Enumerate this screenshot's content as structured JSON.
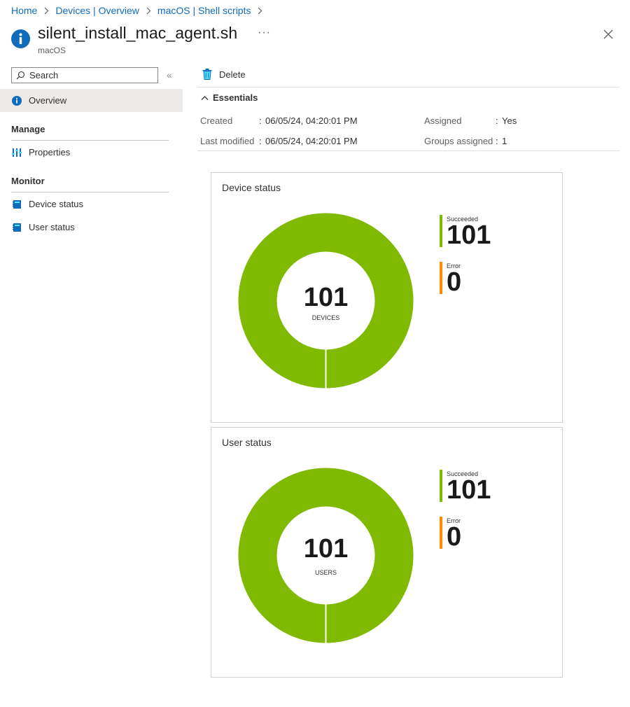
{
  "breadcrumb": [
    {
      "label": "Home"
    },
    {
      "label": "Devices | Overview"
    },
    {
      "label": "macOS | Shell scripts"
    }
  ],
  "header": {
    "title": "silent_install_mac_agent.sh",
    "subtitle": "macOS",
    "more_label": "···"
  },
  "sidebar": {
    "search_placeholder": "Search",
    "collapse_label": "«",
    "overview_label": "Overview",
    "manage_heading": "Manage",
    "properties_label": "Properties",
    "monitor_heading": "Monitor",
    "device_status_label": "Device status",
    "user_status_label": "User status"
  },
  "toolbar": {
    "delete_label": "Delete"
  },
  "essentials": {
    "heading": "Essentials",
    "created_label": "Created",
    "created_value": "06/05/24, 04:20:01 PM",
    "last_modified_label": "Last modified",
    "last_modified_value": "06/05/24, 04:20:01 PM",
    "assigned_label": "Assigned",
    "assigned_value": "Yes",
    "groups_assigned_label": "Groups assigned",
    "groups_assigned_value": "1"
  },
  "colors": {
    "succeeded": "#7fba00",
    "error": "#ff8c00",
    "link": "#0f6cbd"
  },
  "chart_data": [
    {
      "type": "pie",
      "title": "Device status",
      "center_value": "101",
      "center_label": "DEVICES",
      "categories": [
        "Succeeded",
        "Error"
      ],
      "values": [
        101,
        0
      ],
      "legend": [
        {
          "label": "Succeeded",
          "value": "101"
        },
        {
          "label": "Error",
          "value": "0"
        }
      ]
    },
    {
      "type": "pie",
      "title": "User status",
      "center_value": "101",
      "center_label": "USERS",
      "categories": [
        "Succeeded",
        "Error"
      ],
      "values": [
        101,
        0
      ],
      "legend": [
        {
          "label": "Succeeded",
          "value": "101"
        },
        {
          "label": "Error",
          "value": "0"
        }
      ]
    }
  ]
}
